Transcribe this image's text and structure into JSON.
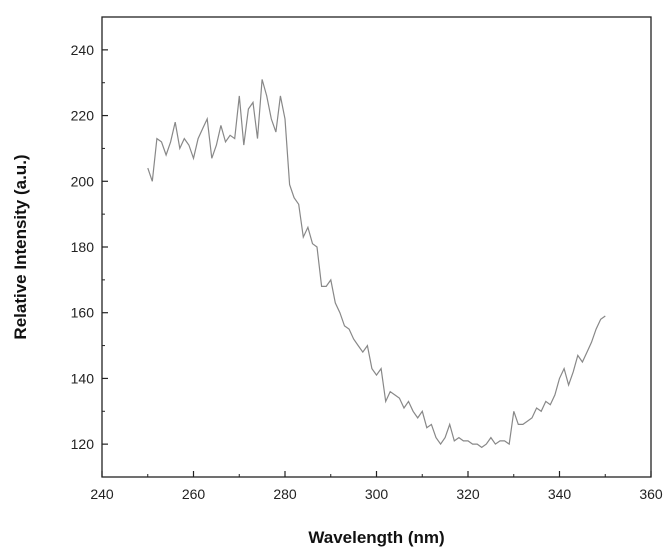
{
  "chart_data": {
    "type": "line",
    "title": "",
    "xlabel": "Wavelength (nm)",
    "ylabel": "Relative Intensity (a.u.)",
    "xlim": [
      240,
      360
    ],
    "ylim": [
      110,
      250
    ],
    "xticks": [
      240,
      260,
      280,
      300,
      320,
      340,
      360
    ],
    "yticks": [
      120,
      140,
      160,
      180,
      200,
      220,
      240
    ],
    "grid": false,
    "legend": "none",
    "line_color": "#888888",
    "series": [
      {
        "x": [
          250,
          251,
          252,
          253,
          254,
          255,
          256,
          257,
          258,
          259,
          260,
          261,
          262,
          263,
          264,
          265,
          266,
          267,
          268,
          269,
          270,
          271,
          272,
          273,
          274,
          275,
          276,
          277,
          278,
          279,
          280,
          281,
          282,
          283,
          284,
          285,
          286,
          287,
          288,
          289,
          290,
          291,
          292,
          293,
          294,
          295,
          296,
          297,
          298,
          299,
          300,
          301,
          302,
          303,
          304,
          305,
          306,
          307,
          308,
          309,
          310,
          311,
          312,
          313,
          314,
          315,
          316,
          317,
          318,
          319,
          320,
          321,
          322,
          323,
          324,
          325,
          326,
          327,
          328,
          329,
          330,
          331,
          332,
          333,
          334,
          335,
          336,
          337,
          338,
          339,
          340,
          341,
          342,
          343,
          344,
          345,
          346,
          347,
          348,
          349,
          350
        ],
        "values": [
          204,
          200,
          213,
          212,
          208,
          212,
          218,
          210,
          213,
          211,
          207,
          213,
          216,
          219,
          207,
          211,
          217,
          212,
          214,
          213,
          226,
          211,
          222,
          224,
          213,
          231,
          226,
          219,
          215,
          226,
          219,
          199,
          195,
          193,
          183,
          186,
          181,
          180,
          168,
          168,
          170,
          163,
          160,
          156,
          155,
          152,
          150,
          148,
          150,
          143,
          141,
          143,
          133,
          136,
          135,
          134,
          131,
          133,
          130,
          128,
          130,
          125,
          126,
          122,
          120,
          122,
          126,
          121,
          122,
          121,
          121,
          120,
          120,
          119,
          120,
          122,
          120,
          121,
          121,
          120,
          130,
          126,
          126,
          127,
          128,
          131,
          130,
          133,
          132,
          135,
          140,
          143,
          138,
          142,
          147,
          145,
          148,
          151,
          155,
          158,
          159
        ]
      }
    ]
  }
}
